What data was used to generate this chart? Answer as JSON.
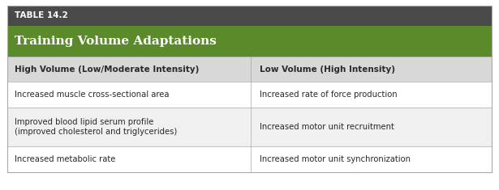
{
  "table_label": "TABLE 14.2",
  "title": "Training Volume Adaptations",
  "col1_header": "High Volume (Low/Moderate Intensity)",
  "col2_header": "Low Volume (High Intensity)",
  "rows": [
    [
      "Increased muscle cross-sectional area",
      "Increased rate of force production"
    ],
    [
      "Improved blood lipid serum profile\n(improved cholesterol and triglycerides)",
      "Increased motor unit recruitment"
    ],
    [
      "Increased metabolic rate",
      "Increased motor unit synchronization"
    ]
  ],
  "color_table_label_bg": "#4a4a4a",
  "color_table_label_text": "#ffffff",
  "color_title_bg": "#5a8a2a",
  "color_title_text": "#ffffff",
  "color_header_bg": "#d8d8d8",
  "color_header_text": "#2a2a2a",
  "color_row_odd_bg": "#ffffff",
  "color_row_even_bg": "#f0f0f0",
  "color_row_text": "#2a2a2a",
  "color_border": "#aaaaaa",
  "color_outer_bg": "#ffffff",
  "fig_width": 6.15,
  "fig_height": 2.35
}
